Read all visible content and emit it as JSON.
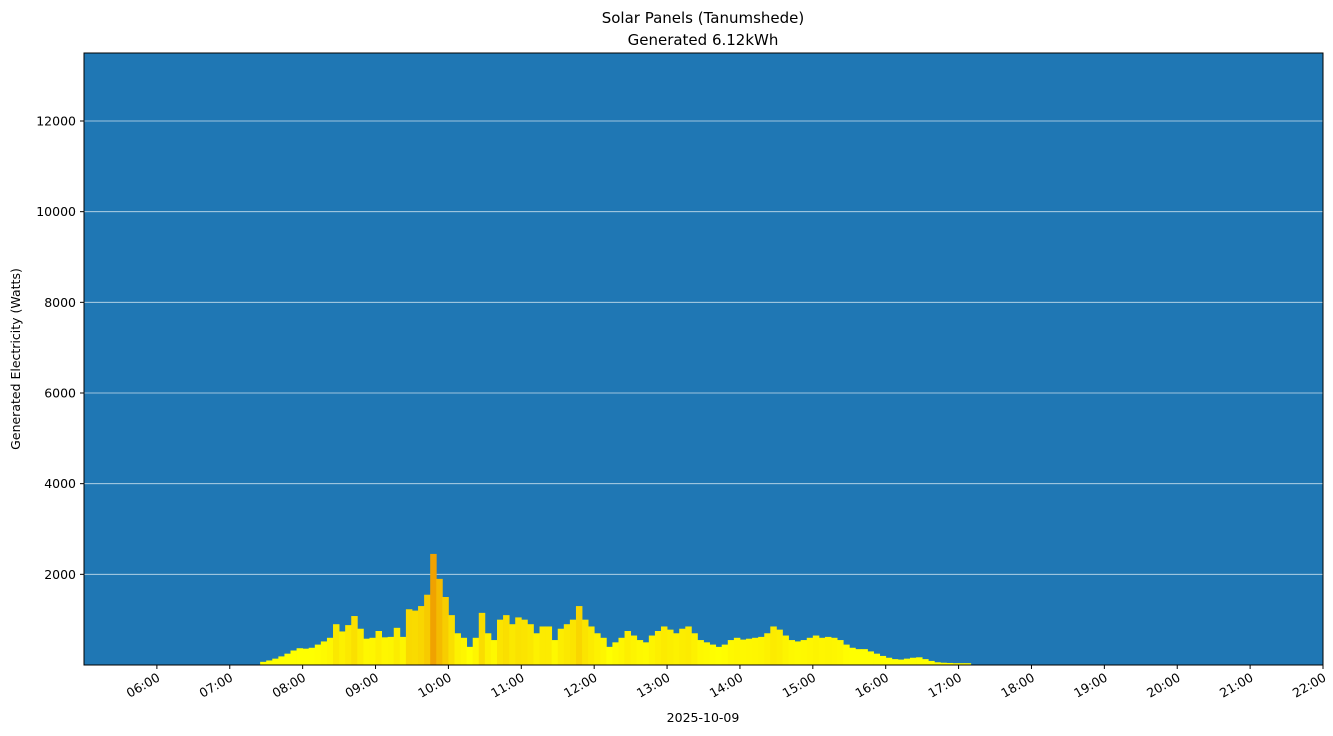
{
  "chart_data": {
    "type": "bar",
    "title": "Solar Panels (Tanumshede)",
    "subtitle": "Generated 6.12kWh",
    "xlabel": "2025-10-09",
    "ylabel": "Generated Electricity (Watts)",
    "background_color": "#1f77b4",
    "grid": "horizontal",
    "bar_color_low": "#ffff00",
    "bar_color_high": "#f0a000",
    "xlim": [
      "05:00",
      "22:00"
    ],
    "ylim": [
      0,
      13500
    ],
    "x_ticks": [
      "06:00",
      "07:00",
      "08:00",
      "09:00",
      "10:00",
      "11:00",
      "12:00",
      "13:00",
      "14:00",
      "15:00",
      "16:00",
      "17:00",
      "18:00",
      "19:00",
      "20:00",
      "21:00",
      "22:00"
    ],
    "y_ticks": [
      2000,
      4000,
      6000,
      8000,
      10000,
      12000
    ],
    "interval_minutes": 5,
    "series": [
      {
        "x_start": "07:25",
        "values": [
          70,
          100,
          140,
          190,
          250,
          320,
          370,
          360,
          380,
          450,
          520,
          600,
          900,
          740,
          880,
          1080,
          800,
          580,
          600,
          750,
          610,
          620,
          820,
          620,
          1230,
          1200,
          1300,
          1550,
          2450,
          1900,
          1500,
          1100,
          700,
          600,
          400,
          600,
          1150,
          700,
          550,
          1000,
          1100,
          900,
          1050,
          1000,
          900,
          700,
          850,
          850,
          550,
          800,
          900,
          1000,
          1300,
          1000,
          850,
          700,
          600,
          400,
          500,
          600,
          750,
          650,
          550,
          500,
          650,
          750,
          850,
          780,
          700,
          800,
          850,
          700,
          550,
          500,
          450,
          400,
          450,
          550,
          600,
          560,
          580,
          600,
          620,
          700,
          850,
          780,
          650,
          550,
          520,
          550,
          600,
          650,
          600,
          620,
          600,
          550,
          450,
          380,
          350,
          350,
          300,
          250,
          200,
          160,
          130,
          120,
          140,
          160,
          170,
          130,
          90,
          60,
          50,
          45,
          40,
          40,
          40
        ]
      }
    ]
  }
}
